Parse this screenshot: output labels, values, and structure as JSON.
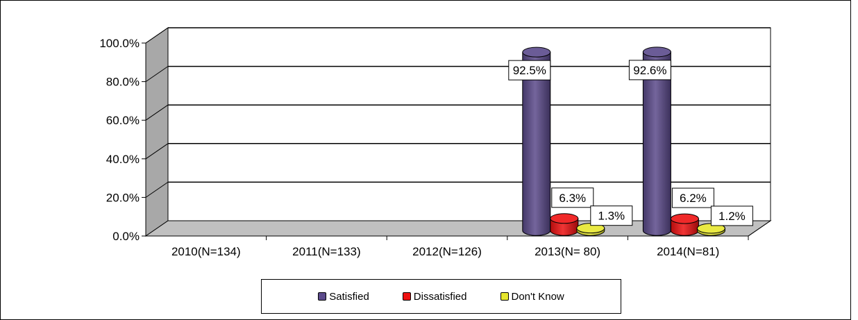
{
  "chart_data": {
    "type": "bar",
    "categories": [
      "2010(N=134)",
      "2011(N=133)",
      "2012(N=126)",
      "2013(N= 80)",
      "2014(N=81)"
    ],
    "series": [
      {
        "name": "Satisfied",
        "color": "#5b4a8b",
        "values": [
          null,
          null,
          null,
          92.5,
          92.6
        ],
        "labels": [
          "",
          "",
          "",
          "92.5%",
          "92.6%"
        ]
      },
      {
        "name": "Dissatisfied",
        "color": "#ee1111",
        "values": [
          null,
          null,
          null,
          6.3,
          6.2
        ],
        "labels": [
          "",
          "",
          "",
          "6.3%",
          "6.2%"
        ]
      },
      {
        "name": "Don't Know",
        "color": "#e6e62e",
        "values": [
          null,
          null,
          null,
          1.3,
          1.2
        ],
        "labels": [
          "",
          "",
          "",
          "1.3%",
          "1.2%"
        ]
      }
    ],
    "yticks": [
      "0.0%",
      "20.0%",
      "40.0%",
      "60.0%",
      "80.0%",
      "100.0%"
    ],
    "ylim": [
      0,
      100
    ],
    "grid": true,
    "legend": "bottom",
    "style": "3d-cylinder"
  }
}
